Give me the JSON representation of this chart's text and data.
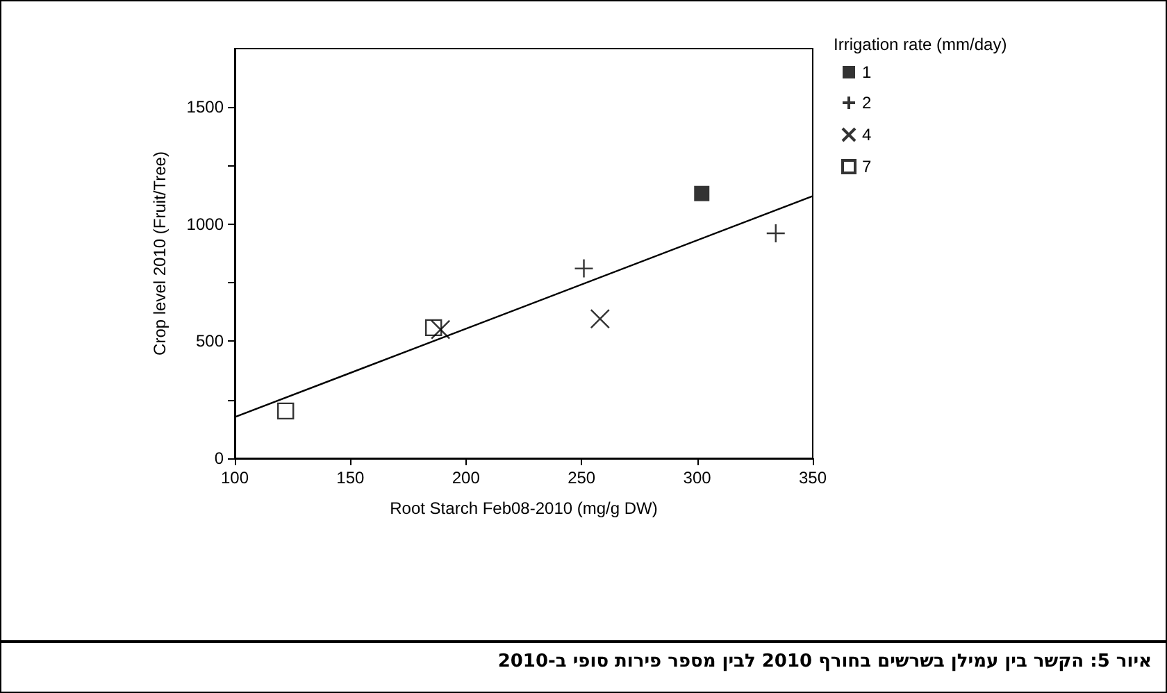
{
  "chart_data": {
    "type": "scatter",
    "xlabel": "Root Starch Feb08-2010 (mg/g DW)",
    "ylabel": "Crop level 2010 (Fruit/Tree)",
    "legend_title": "Irrigation rate (mm/day)",
    "legend": "top right",
    "grid": false,
    "xlim": [
      100,
      350
    ],
    "xticks": [
      100,
      150,
      200,
      250,
      300,
      350
    ],
    "ylim": [
      0,
      1750
    ],
    "yticks": [
      0,
      {
        "value": 250,
        "label": null
      },
      500,
      {
        "value": 750,
        "label": null
      },
      1000,
      {
        "value": 1250,
        "label": null
      },
      1500
    ],
    "series": [
      {
        "name": "1",
        "color": "#000000",
        "marker": "square",
        "x": [
          302
        ],
        "values": [
          1131
        ]
      },
      {
        "name": "2",
        "color": "#000000",
        "marker": "cross",
        "x": [
          251,
          334
        ],
        "values": [
          811,
          961
        ]
      },
      {
        "name": "4",
        "color": "#000000",
        "marker": "x",
        "x": [
          189,
          258
        ],
        "values": [
          550,
          596
        ]
      },
      {
        "name": "7",
        "color": "#000000",
        "marker": "square-open",
        "x": [
          122,
          186
        ],
        "values": [
          202,
          558
        ]
      },
      {
        "type": "line",
        "color": "#000000",
        "marker": "none",
        "x": [
          100,
          350
        ],
        "values": [
          176,
          1120
        ]
      }
    ],
    "annotations": [
      "איור 5: הקשר בין עמילן בשרשים בחורף 2010 לבין מספר פירות סופי ב-2010"
    ]
  }
}
